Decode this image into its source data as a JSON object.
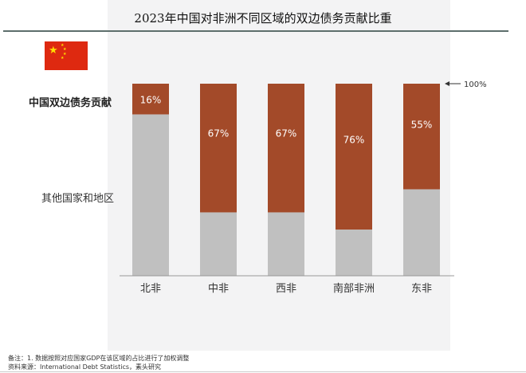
{
  "chart_data": {
    "type": "bar",
    "stacked": true,
    "title": "2023年中国对非洲不同区域的双边债务贡献比重",
    "categories": [
      "北非",
      "中非",
      "西非",
      "南部非洲",
      "东非"
    ],
    "series": [
      {
        "name": "中国双边债务贡献",
        "values": [
          16,
          67,
          67,
          76,
          55
        ],
        "color": "#a34a29"
      },
      {
        "name": "其他国家和地区",
        "values": [
          84,
          33,
          33,
          24,
          45
        ],
        "color": "#c0c0c0"
      }
    ],
    "value_labels": [
      "16%",
      "67%",
      "67%",
      "76%",
      "55%"
    ],
    "ylim": [
      0,
      100
    ],
    "annotation": "100%",
    "xlabel": "",
    "ylabel": ""
  },
  "footnote": {
    "note": "备注：1. 数据按照对应国家GDP在该区域的占比进行了加权调整",
    "source": "资料来源：International Debt Statistics，素头研究"
  }
}
